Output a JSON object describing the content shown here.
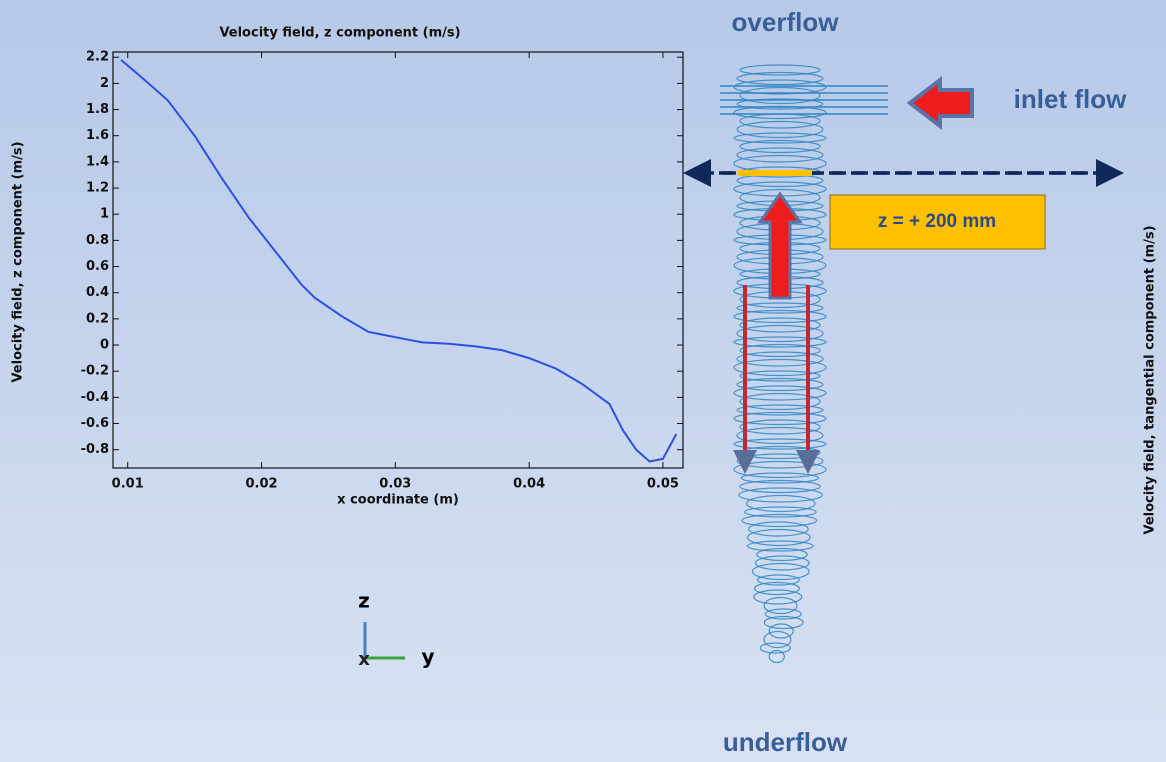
{
  "chart_data": {
    "type": "line",
    "title": "Velocity field, z component (m/s)",
    "x_label": "x coordinate (m)",
    "y_label": "Velocity field, z component (m/s)",
    "x": [
      0.0095,
      0.011,
      0.013,
      0.015,
      0.017,
      0.019,
      0.021,
      0.023,
      0.024,
      0.026,
      0.028,
      0.03,
      0.032,
      0.034,
      0.036,
      0.038,
      0.04,
      0.042,
      0.044,
      0.046,
      0.047,
      0.048,
      0.049,
      0.05,
      0.051
    ],
    "values": [
      2.18,
      2.05,
      1.87,
      1.6,
      1.28,
      0.98,
      0.72,
      0.46,
      0.36,
      0.22,
      0.1,
      0.06,
      0.02,
      0.01,
      -0.01,
      -0.04,
      -0.1,
      -0.18,
      -0.3,
      -0.45,
      -0.65,
      -0.8,
      -0.89,
      -0.87,
      -0.68
    ],
    "color": "#2f4fe0",
    "xlim": [
      0.0089,
      0.0515
    ],
    "xticks": [
      0.01,
      0.02,
      0.03,
      0.04,
      0.05
    ],
    "ylim": [
      -0.94,
      2.24
    ],
    "yticks": [
      2.2,
      2,
      1.8,
      1.6,
      1.4,
      1.2,
      1,
      0.8,
      0.6,
      0.4,
      0.2,
      0,
      -0.2,
      -0.4,
      -0.6,
      -0.8
    ],
    "grid": false
  },
  "diagram": {
    "top_label": "overflow",
    "inlet_label": "inlet flow",
    "bottom_label": "underflow",
    "level_label": "z = + 200 mm",
    "side_axis_label": "Velocity field, tangential component (m/s)",
    "axis_z": "z",
    "axis_y": "y",
    "axis_x": "x"
  }
}
